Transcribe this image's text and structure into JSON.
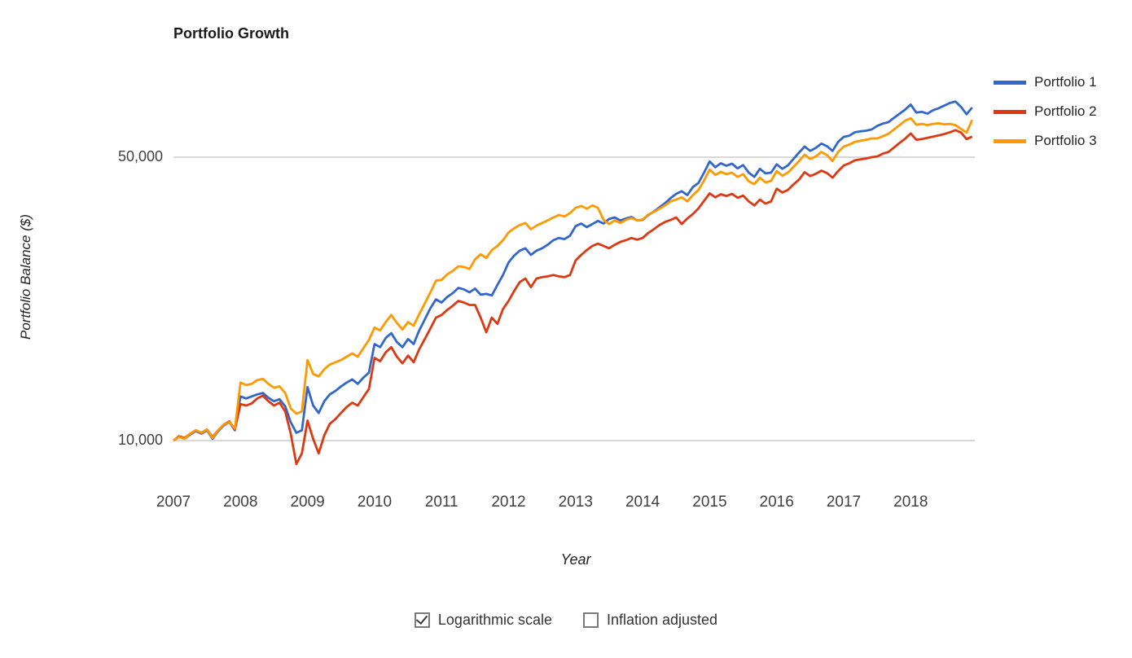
{
  "title": "Portfolio Growth",
  "y_axis": {
    "title": "Portfolio Balance ($)",
    "ticks": [
      {
        "value": 10000,
        "label": "10,000"
      },
      {
        "value": 50000,
        "label": "50,000"
      }
    ]
  },
  "x_axis": {
    "title": "Year",
    "ticks": [
      "2007",
      "2008",
      "2009",
      "2010",
      "2011",
      "2012",
      "2013",
      "2014",
      "2015",
      "2016",
      "2017",
      "2018"
    ]
  },
  "controls": {
    "logarithmic": {
      "label": "Logarithmic scale",
      "checked": true
    },
    "inflation": {
      "label": "Inflation adjusted",
      "checked": false
    }
  },
  "colors": {
    "grid": "#cccccc",
    "tick_text": "#404040"
  },
  "chart_data": {
    "type": "line",
    "log_scale": true,
    "grid": "horizontal-only",
    "legend_position": "right",
    "x_start_year": 2007,
    "x_step_months": 1,
    "x_range": [
      2007,
      2018.92
    ],
    "ylim": [
      8000,
      80000
    ],
    "gridline_values": [
      10000,
      50000
    ],
    "xlabel": "Year",
    "ylabel": "Portfolio Balance ($)",
    "series": [
      {
        "name": "Portfolio 1",
        "color": "#3366CC",
        "values": [
          10000,
          10200,
          10100,
          10350,
          10550,
          10400,
          10600,
          10100,
          10550,
          10900,
          11100,
          10600,
          12850,
          12700,
          12850,
          13000,
          13100,
          12750,
          12500,
          12650,
          12150,
          11100,
          10450,
          10600,
          13550,
          12200,
          11700,
          12500,
          13000,
          13250,
          13600,
          13900,
          14150,
          13800,
          14300,
          14700,
          17300,
          17000,
          17900,
          18400,
          17500,
          17000,
          17800,
          17300,
          18700,
          19900,
          21200,
          22300,
          21900,
          22600,
          23100,
          23800,
          23600,
          23200,
          23700,
          22900,
          23000,
          22800,
          24200,
          25600,
          27500,
          28600,
          29400,
          29800,
          28700,
          29400,
          29800,
          30400,
          31200,
          31600,
          31400,
          32000,
          33800,
          34300,
          33600,
          34200,
          34800,
          34300,
          35200,
          35500,
          34900,
          35300,
          35600,
          34900,
          35000,
          36000,
          36700,
          37600,
          38500,
          39600,
          40600,
          41200,
          40300,
          42200,
          43200,
          45800,
          48800,
          47200,
          48300,
          47600,
          48200,
          46900,
          47800,
          45800,
          44700,
          46800,
          45600,
          45800,
          48000,
          46800,
          47700,
          49500,
          51300,
          53100,
          51800,
          52700,
          54000,
          53200,
          51800,
          54500,
          56100,
          56500,
          57600,
          57900,
          58100,
          58500,
          59700,
          60500,
          61000,
          62500,
          64000,
          65500,
          67400,
          64400,
          64700,
          64000,
          65300,
          66000,
          67000,
          68000,
          68600,
          66500,
          63800,
          66300
        ]
      },
      {
        "name": "Portfolio 2",
        "color": "#DC3912",
        "values": [
          10000,
          10250,
          10150,
          10400,
          10600,
          10450,
          10650,
          10200,
          10600,
          10950,
          11150,
          10650,
          12300,
          12200,
          12350,
          12700,
          12900,
          12500,
          12200,
          12400,
          11800,
          10400,
          8750,
          9300,
          11200,
          10100,
          9300,
          10300,
          11000,
          11300,
          11700,
          12100,
          12400,
          12200,
          12800,
          13400,
          16000,
          15700,
          16500,
          17000,
          16100,
          15500,
          16200,
          15600,
          16800,
          17800,
          18900,
          20100,
          20400,
          21000,
          21500,
          22100,
          21900,
          21600,
          21600,
          20100,
          18500,
          20100,
          19400,
          21100,
          22100,
          23400,
          24600,
          25100,
          23900,
          25100,
          25300,
          25400,
          25600,
          25400,
          25300,
          25600,
          27800,
          28700,
          29500,
          30200,
          30600,
          30200,
          29800,
          30400,
          30900,
          31200,
          31600,
          31300,
          31600,
          32500,
          33200,
          34000,
          34600,
          35000,
          35500,
          34200,
          35300,
          36200,
          37400,
          39000,
          40700,
          39800,
          40500,
          40100,
          40600,
          39700,
          40200,
          38900,
          38000,
          39300,
          38400,
          38900,
          41800,
          40900,
          41500,
          42800,
          44000,
          45900,
          44900,
          45500,
          46300,
          45700,
          44500,
          46200,
          47700,
          48300,
          49100,
          49400,
          49600,
          50000,
          50200,
          51000,
          51500,
          52800,
          54200,
          55500,
          57200,
          55200,
          55400,
          55800,
          56200,
          56600,
          57000,
          57600,
          58300,
          57500,
          55400,
          56200
        ]
      },
      {
        "name": "Portfolio 3",
        "color": "#FF9900",
        "values": [
          10000,
          10200,
          10100,
          10400,
          10600,
          10450,
          10650,
          10150,
          10600,
          10950,
          11100,
          10700,
          13900,
          13700,
          13800,
          14100,
          14200,
          13800,
          13500,
          13600,
          13100,
          12000,
          11650,
          11800,
          15800,
          14600,
          14400,
          15000,
          15400,
          15600,
          15800,
          16100,
          16400,
          16100,
          16900,
          17700,
          19000,
          18700,
          19600,
          20400,
          19500,
          18800,
          19600,
          19200,
          20500,
          21800,
          23200,
          24800,
          24900,
          25700,
          26200,
          26900,
          26800,
          26500,
          28000,
          28800,
          28200,
          29500,
          30200,
          31200,
          32600,
          33400,
          34000,
          34400,
          33200,
          33900,
          34400,
          34900,
          35500,
          36000,
          35700,
          36400,
          37500,
          37900,
          37300,
          38000,
          37500,
          35000,
          34200,
          34900,
          34400,
          35000,
          35400,
          34900,
          35100,
          36100,
          36600,
          37300,
          38000,
          38900,
          39300,
          39800,
          38900,
          40300,
          41500,
          43800,
          46600,
          45200,
          46000,
          45400,
          45800,
          44700,
          45400,
          43600,
          42900,
          44500,
          43300,
          43700,
          46200,
          45000,
          45800,
          47300,
          48900,
          50700,
          49500,
          50200,
          51500,
          50600,
          48900,
          51500,
          53100,
          53700,
          54500,
          54900,
          55200,
          55600,
          55600,
          56300,
          57100,
          58500,
          60000,
          61500,
          62400,
          60100,
          60400,
          60000,
          60400,
          60600,
          60200,
          60400,
          60000,
          58700,
          57500,
          61800
        ]
      }
    ]
  }
}
